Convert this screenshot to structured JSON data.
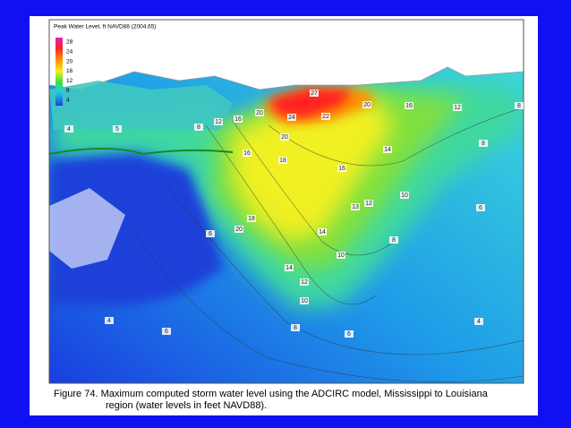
{
  "legend": {
    "title": "Peak Water Level, ft NAVD88 (2004.65)",
    "ticks": [
      28,
      24,
      20,
      16,
      12,
      8,
      4
    ]
  },
  "contour_labels": [
    4,
    5,
    8,
    12,
    16,
    20,
    27,
    24,
    22,
    20,
    16,
    12,
    8,
    8,
    20,
    16,
    18,
    16,
    14,
    10,
    12,
    13,
    14,
    18,
    20,
    6,
    8,
    10,
    14,
    12,
    10,
    8,
    6,
    6,
    4,
    4,
    6
  ],
  "caption": [
    "Figure 74.  Maximum computed storm water level using the ADCIRC model, Mississippi to Louisiana",
    "region (water levels in feet NAVD88)."
  ]
}
